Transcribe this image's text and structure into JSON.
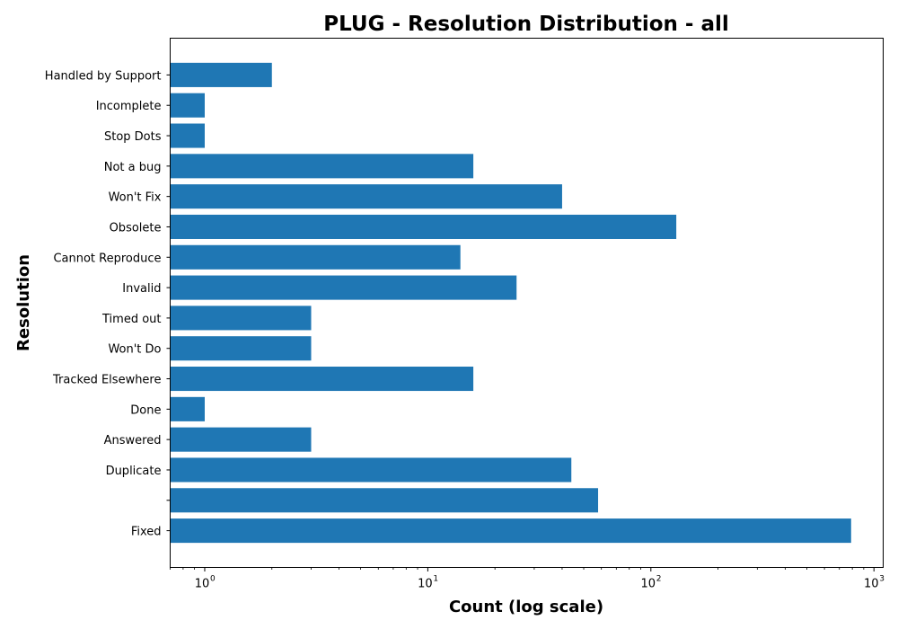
{
  "chart_data": {
    "type": "bar",
    "orientation": "horizontal",
    "title": "PLUG - Resolution Distribution - all",
    "xlabel": "Count (log scale)",
    "ylabel": "Resolution",
    "xscale": "log",
    "xlim": [
      0.7,
      1100
    ],
    "xticks": [
      {
        "value": 1,
        "base": "10",
        "exp": "0"
      },
      {
        "value": 10,
        "base": "10",
        "exp": "1"
      },
      {
        "value": 100,
        "base": "10",
        "exp": "2"
      },
      {
        "value": 1000,
        "base": "10",
        "exp": "3"
      }
    ],
    "categories": [
      "Fixed",
      "",
      "Duplicate",
      "Answered",
      "Done",
      "Tracked Elsewhere",
      "Won't Do",
      "Timed out",
      "Invalid",
      "Cannot Reproduce",
      "Obsolete",
      "Won't Fix",
      "Not a bug",
      "Stop Dots",
      "Incomplete",
      "Handled by Support"
    ],
    "values": [
      790,
      58,
      44,
      3,
      1,
      16,
      3,
      3,
      25,
      14,
      130,
      40,
      16,
      1,
      1,
      2
    ],
    "bar_color": "#1f77b4",
    "grid": false,
    "legend": "none"
  }
}
